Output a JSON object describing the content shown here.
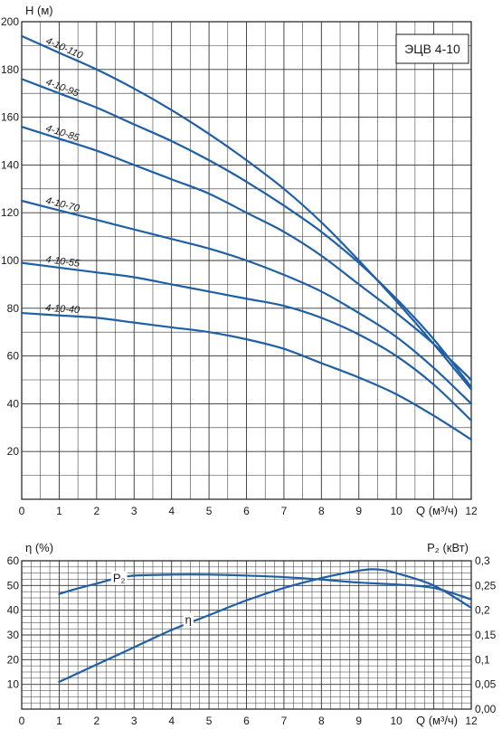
{
  "chart_data": [
    {
      "type": "line",
      "title": "ЭЦВ 4-10",
      "ylabel": "H (м)",
      "xlabel": "Q (м³/ч)",
      "xlim": [
        0,
        12
      ],
      "ylim": [
        0,
        200
      ],
      "x_ticks": [
        "0",
        "1",
        "2",
        "3",
        "4",
        "5",
        "6",
        "7",
        "8",
        "9",
        "10",
        "12"
      ],
      "y_ticks": [
        "20",
        "40",
        "60",
        "80",
        "100",
        "120",
        "140",
        "160",
        "180",
        "200"
      ],
      "grid": true,
      "series": [
        {
          "name": "4-10-110",
          "x": [
            0,
            1,
            2,
            3,
            4,
            5,
            6,
            7,
            8,
            9,
            10,
            11,
            12
          ],
          "y": [
            194,
            187,
            180,
            172,
            163,
            153,
            142,
            130,
            116,
            100,
            83,
            65,
            46
          ]
        },
        {
          "name": "4-10-95",
          "x": [
            0,
            1,
            2,
            3,
            4,
            5,
            6,
            7,
            8,
            9,
            10,
            11,
            12
          ],
          "y": [
            176,
            170,
            164,
            157,
            150,
            142,
            133,
            123,
            112,
            99,
            84,
            67,
            47
          ]
        },
        {
          "name": "4-10-85",
          "x": [
            0,
            1,
            2,
            3,
            4,
            5,
            6,
            7,
            8,
            9,
            10,
            11,
            12
          ],
          "y": [
            156,
            151,
            146,
            140,
            134,
            128,
            120,
            112,
            102,
            90,
            78,
            65,
            50
          ]
        },
        {
          "name": "4-10-70",
          "x": [
            0,
            1,
            2,
            3,
            4,
            5,
            6,
            7,
            8,
            9,
            10,
            11,
            12
          ],
          "y": [
            125,
            121,
            117,
            113,
            109,
            105,
            100,
            94,
            87,
            78,
            68,
            55,
            40
          ]
        },
        {
          "name": "4-10-55",
          "x": [
            0,
            1,
            2,
            3,
            4,
            5,
            6,
            7,
            8,
            9,
            10,
            11,
            12
          ],
          "y": [
            99,
            97,
            95,
            93,
            90,
            87,
            84,
            81,
            76,
            69,
            60,
            48,
            33
          ]
        },
        {
          "name": "4-10-40",
          "x": [
            0,
            1,
            2,
            3,
            4,
            5,
            6,
            7,
            8,
            9,
            10,
            11,
            12
          ],
          "y": [
            78,
            77,
            76,
            74,
            72,
            70,
            67,
            63,
            57,
            51,
            44,
            35,
            25
          ]
        }
      ]
    },
    {
      "type": "line",
      "ylabel": "η (%)",
      "y2label": "P₂ (кВт)",
      "xlabel": "Q (м³/ч)",
      "xlim": [
        0,
        12
      ],
      "ylim": [
        0,
        60
      ],
      "y2lim": [
        0,
        0.3
      ],
      "x_ticks": [
        "0",
        "1",
        "2",
        "3",
        "4",
        "5",
        "6",
        "7",
        "8",
        "9",
        "10",
        "12"
      ],
      "y_ticks": [
        "10",
        "20",
        "30",
        "40",
        "50",
        "60"
      ],
      "y2_ticks": [
        "0,00",
        "0,05",
        "0,1",
        "0,15",
        "0,2",
        "0,25",
        "0,3"
      ],
      "grid": true,
      "series": [
        {
          "name": "P₂",
          "axis": "right",
          "x": [
            1,
            1.5,
            2,
            2.5,
            3,
            4,
            5,
            6,
            7,
            8,
            9,
            10,
            11,
            12
          ],
          "y": [
            0.233,
            0.244,
            0.254,
            0.264,
            0.27,
            0.272,
            0.272,
            0.27,
            0.267,
            0.262,
            0.256,
            0.252,
            0.245,
            0.222
          ]
        },
        {
          "name": "η",
          "axis": "left",
          "x": [
            1,
            2,
            3,
            4,
            5,
            6,
            7,
            8,
            9,
            9.5,
            10,
            11,
            12
          ],
          "y": [
            11,
            18,
            25,
            32,
            38,
            44,
            49,
            53,
            56,
            56.5,
            55,
            50,
            41
          ]
        }
      ]
    }
  ]
}
